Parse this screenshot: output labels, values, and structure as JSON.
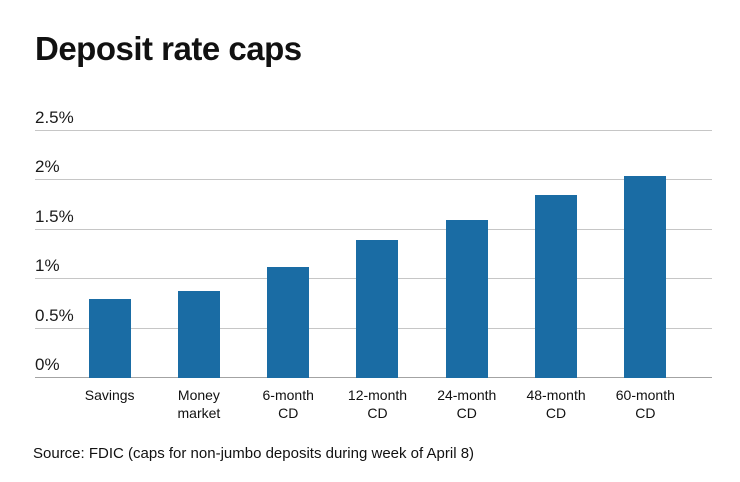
{
  "title": "Deposit rate caps",
  "source": "Source: FDIC (caps for non-jumbo deposits during week of April 8)",
  "colors": {
    "bar": "#1a6ca4",
    "gridline": "#c6c6c6",
    "baseline": "#a3a3a3"
  },
  "chart_data": {
    "type": "bar",
    "title": "Deposit rate caps",
    "categories": [
      "Savings",
      "Money market",
      "6-month CD",
      "12-month CD",
      "24-month CD",
      "48-month CD",
      "60-month CD"
    ],
    "category_lines": [
      [
        "Savings"
      ],
      [
        "Money",
        "market"
      ],
      [
        "6-month",
        "CD"
      ],
      [
        "12-month",
        "CD"
      ],
      [
        "24-month",
        "CD"
      ],
      [
        "48-month",
        "CD"
      ],
      [
        "60-month",
        "CD"
      ]
    ],
    "values": [
      0.8,
      0.88,
      1.12,
      1.4,
      1.6,
      1.85,
      2.04
    ],
    "xlabel": "",
    "ylabel": "",
    "ylim": [
      0,
      2.5
    ],
    "yticks": [
      0,
      0.5,
      1,
      1.5,
      2,
      2.5
    ],
    "ytick_labels": [
      "0%",
      "0.5%",
      "1%",
      "1.5%",
      "2%",
      "2.5%"
    ],
    "grid": true,
    "legend": false,
    "source": "Source: FDIC (caps for non-jumbo deposits during week of April 8)"
  }
}
